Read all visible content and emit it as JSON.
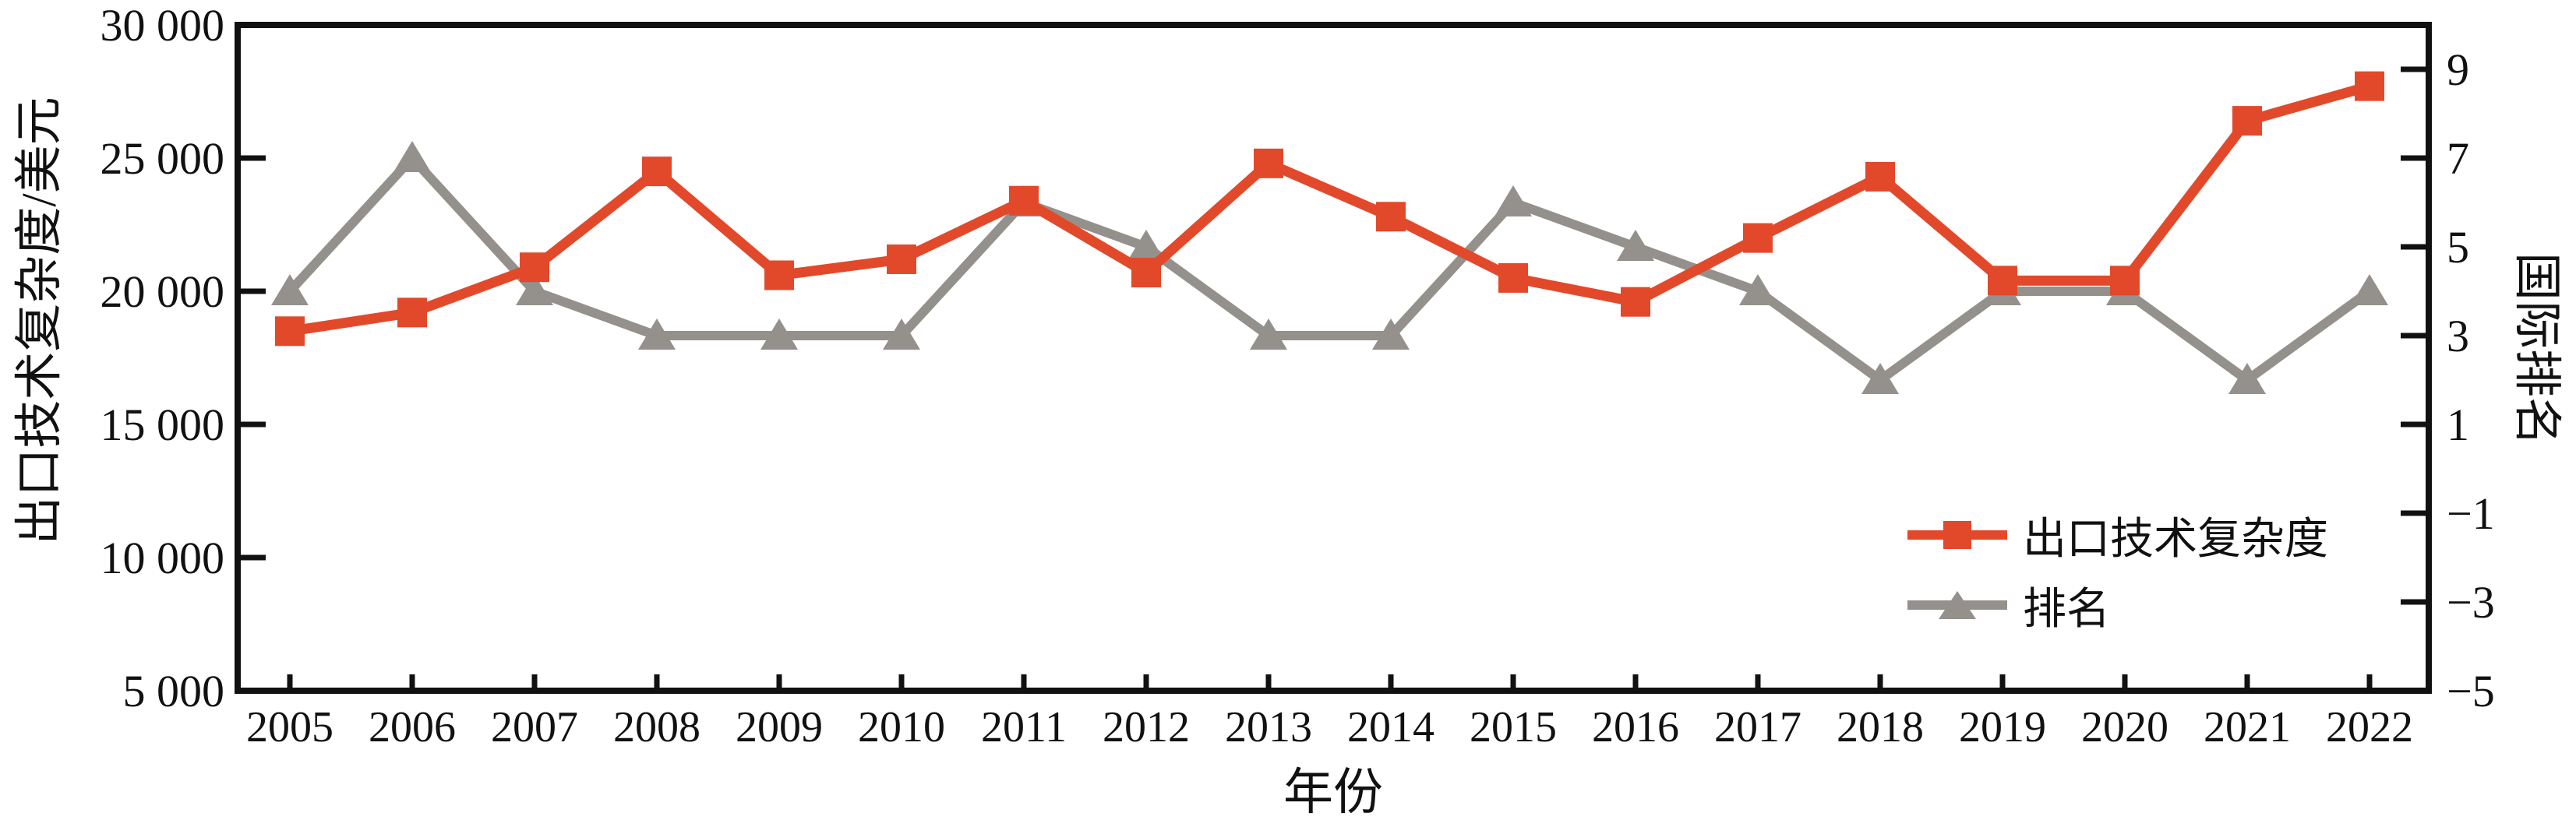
{
  "chart_data": {
    "type": "line",
    "title": "",
    "xlabel": "年份",
    "ylabel_left": "出口技术复杂度/美元",
    "ylabel_right": "国际排名",
    "x": [
      2005,
      2006,
      2007,
      2008,
      2009,
      2010,
      2011,
      2012,
      2013,
      2014,
      2015,
      2016,
      2017,
      2018,
      2019,
      2020,
      2021,
      2022
    ],
    "series": [
      {
        "name": "出口技术复杂度",
        "axis": "left",
        "marker": "square",
        "color": "#e2492a",
        "values": [
          18500,
          19200,
          20900,
          24500,
          20600,
          21200,
          23400,
          20700,
          24800,
          22800,
          20500,
          19600,
          22000,
          24300,
          20400,
          20400,
          26400,
          27700
        ]
      },
      {
        "name": "排名",
        "axis": "right",
        "marker": "triangle",
        "color": "#94918c",
        "values": [
          4,
          7,
          4,
          3,
          3,
          3,
          6,
          5,
          3,
          3,
          6,
          5,
          4,
          2,
          4,
          4,
          2,
          4
        ]
      }
    ],
    "ylim_left": [
      5000,
      30000
    ],
    "ylim_right": [
      -5,
      10
    ],
    "yticks_left": {
      "values": [
        5000,
        10000,
        15000,
        20000,
        25000,
        30000
      ],
      "labels": [
        "5 000",
        "10 000",
        "15 000",
        "20 000",
        "25 000",
        "30 000"
      ]
    },
    "yticks_right": {
      "values": [
        -5,
        -3,
        -1,
        1,
        3,
        5,
        7,
        9
      ],
      "labels": [
        "−5",
        "−3",
        "−1",
        "1",
        "3",
        "5",
        "7",
        "9"
      ]
    },
    "grid": false,
    "legend_position": "inside lower right"
  },
  "colors": {
    "series_red": "#e2492a",
    "series_gray": "#94918c",
    "axis": "#111111",
    "background": "#ffffff"
  }
}
